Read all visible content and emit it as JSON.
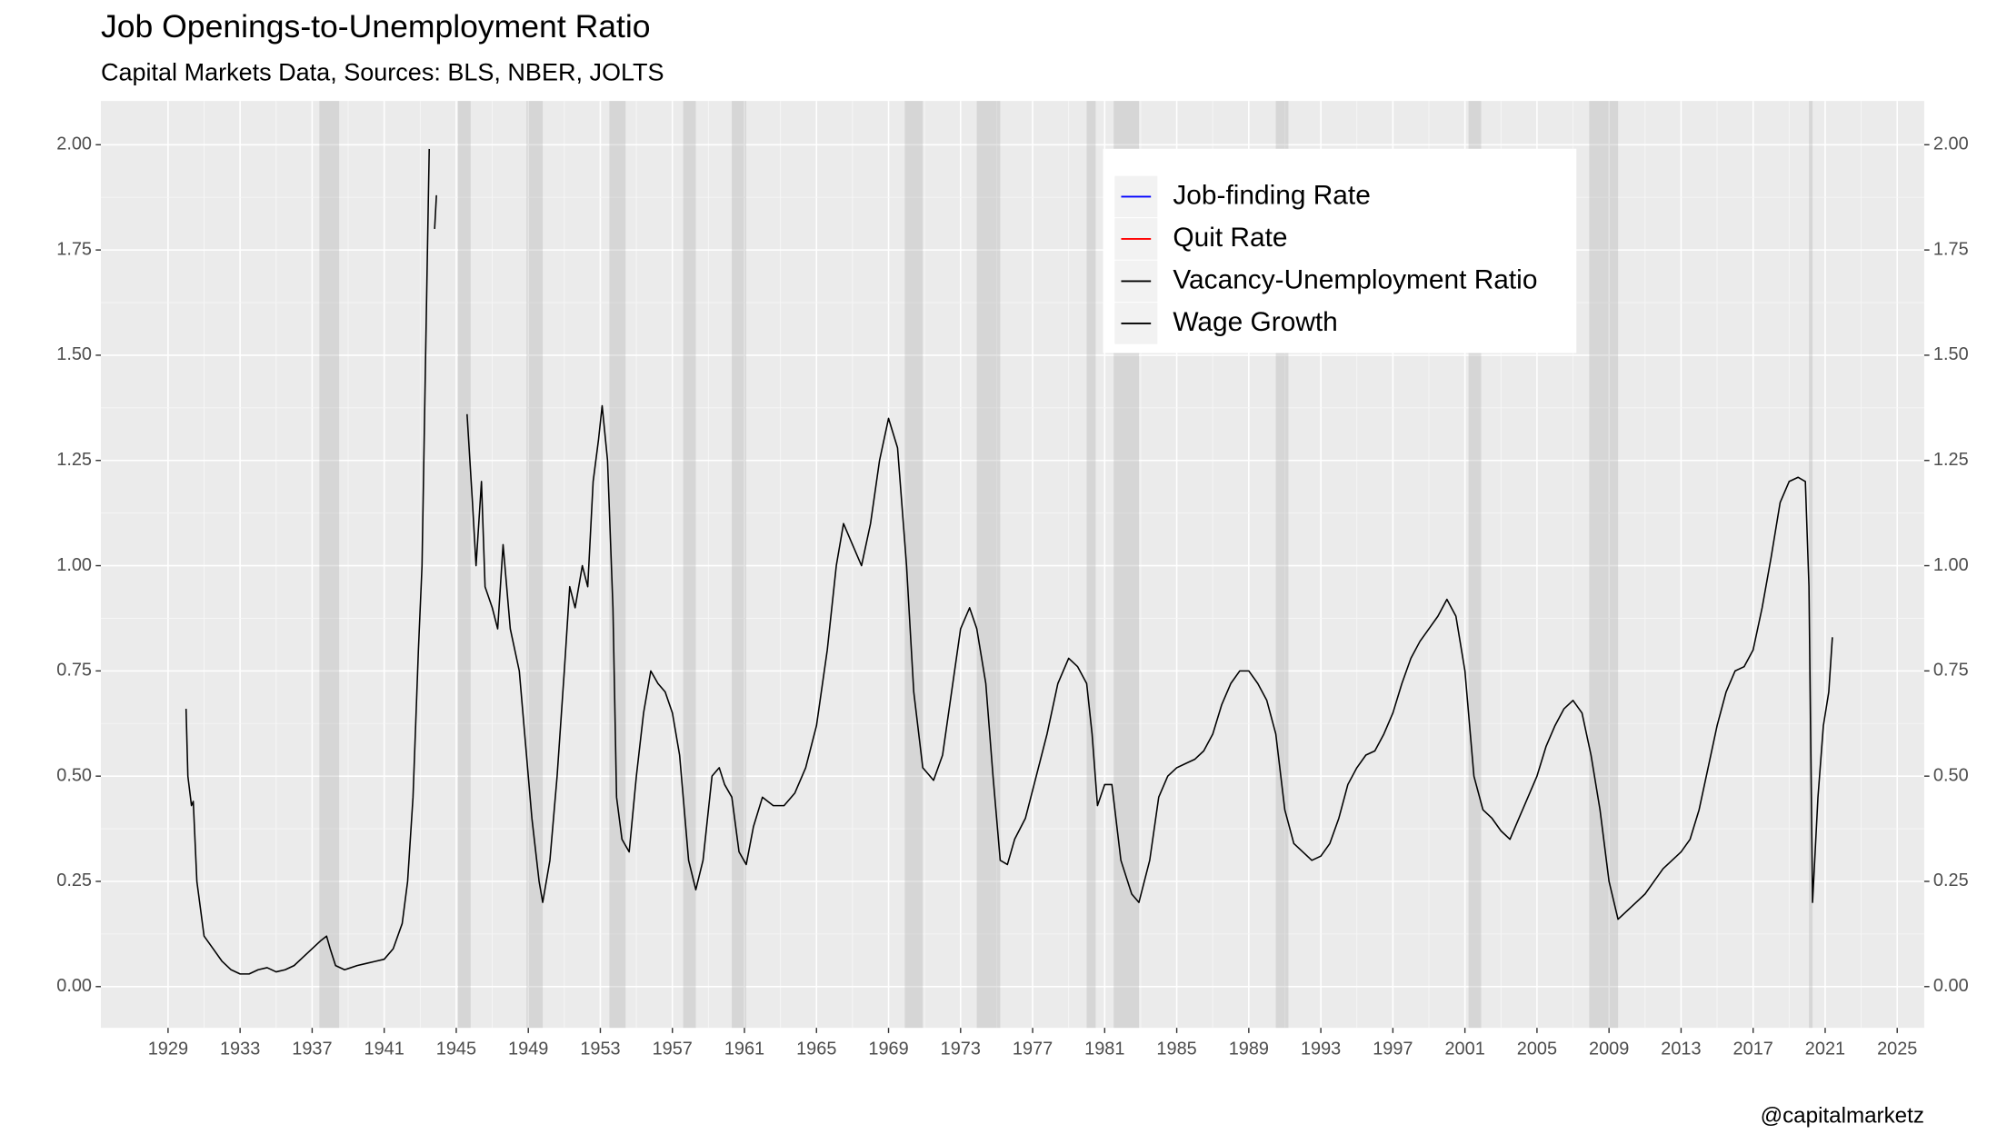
{
  "chart_data": {
    "type": "line",
    "title": "Job Openings-to-Unemployment Ratio",
    "subtitle": "Capital Markets Data, Sources: BLS, NBER, JOLTS",
    "caption": "@capitalmarketz",
    "xlim": [
      1925.27,
      2026.5
    ],
    "ylim": [
      -0.098,
      2.104
    ],
    "xticks": [
      1929,
      1933,
      1937,
      1941,
      1945,
      1949,
      1953,
      1957,
      1961,
      1965,
      1969,
      1973,
      1977,
      1981,
      1985,
      1989,
      1993,
      1997,
      2001,
      2005,
      2009,
      2013,
      2017,
      2021,
      2025
    ],
    "yticks": [
      {
        "value": 0,
        "label": "0.00"
      },
      {
        "value": 0.25,
        "label": "0.25"
      },
      {
        "value": 0.5,
        "label": "0.50"
      },
      {
        "value": 0.75,
        "label": "0.75"
      },
      {
        "value": 1,
        "label": "1.00"
      },
      {
        "value": 1.25,
        "label": "1.25"
      },
      {
        "value": 1.5,
        "label": "1.50"
      },
      {
        "value": 1.75,
        "label": "1.75"
      },
      {
        "value": 2,
        "label": "2.00"
      }
    ],
    "grid": true,
    "legend_position": "top-right",
    "legend": [
      {
        "name": "Job-finding Rate",
        "color": "#0000ff"
      },
      {
        "name": "Quit Rate",
        "color": "#ff0000"
      },
      {
        "name": "Vacancy-Unemployment Ratio",
        "color": "#000000"
      },
      {
        "name": "Wage Growth",
        "color": "#000000"
      }
    ],
    "recessions": [
      [
        1937.4,
        1938.5
      ],
      [
        1945.1,
        1945.8
      ],
      [
        1948.9,
        1949.8
      ],
      [
        1953.5,
        1954.4
      ],
      [
        1957.6,
        1958.3
      ],
      [
        1960.3,
        1961.1
      ],
      [
        1969.9,
        1970.9
      ],
      [
        1973.9,
        1975.2
      ],
      [
        1980.0,
        1980.5
      ],
      [
        1981.5,
        1982.9
      ],
      [
        1990.5,
        1991.2
      ],
      [
        2001.2,
        2001.9
      ],
      [
        2007.9,
        2009.5
      ],
      [
        2020.1,
        2020.3
      ]
    ],
    "series": [
      {
        "name": "Vacancy-Unemployment Ratio",
        "color": "#000000",
        "x": [
          1930.0,
          1930.1,
          1930.3,
          1930.4,
          1930.6,
          1931.0,
          1931.5,
          1932.0,
          1932.5,
          1933.0,
          1933.5,
          1934.0,
          1934.5,
          1935.0,
          1935.5,
          1936.0,
          1936.5,
          1937.0,
          1937.5,
          1937.8,
          1938.0,
          1938.3,
          1938.8,
          1939.5,
          1940.0,
          1940.5,
          1941.0,
          1941.5,
          1942.0,
          1942.3,
          1942.6,
          1942.9,
          1943.1,
          1943.3,
          1943.5,
          1943.65,
          1943.8,
          1943.9,
          1944.7,
          1945.6,
          1945.9,
          1946.1,
          1946.4,
          1946.6,
          1947.0,
          1947.3,
          1947.6,
          1948.0,
          1948.5,
          1948.9,
          1949.2,
          1949.6,
          1949.8,
          1950.2,
          1950.6,
          1951.0,
          1951.3,
          1951.6,
          1952.0,
          1952.3,
          1952.6,
          1952.9,
          1953.1,
          1953.4,
          1953.7,
          1953.9,
          1954.2,
          1954.6,
          1955.0,
          1955.4,
          1955.8,
          1956.2,
          1956.6,
          1957.0,
          1957.4,
          1957.9,
          1958.3,
          1958.7,
          1959.2,
          1959.6,
          1959.9,
          1960.3,
          1960.7,
          1961.1,
          1961.5,
          1962.0,
          1962.6,
          1963.2,
          1963.8,
          1964.4,
          1965.0,
          1965.6,
          1966.1,
          1966.5,
          1967.0,
          1967.5,
          1968.0,
          1968.5,
          1969.0,
          1969.5,
          1970.0,
          1970.4,
          1970.9,
          1971.5,
          1972.0,
          1972.5,
          1973.0,
          1973.5,
          1973.9,
          1974.4,
          1974.8,
          1975.2,
          1975.6,
          1976.0,
          1976.6,
          1977.2,
          1977.8,
          1978.4,
          1979.0,
          1979.5,
          1980.0,
          1980.3,
          1980.6,
          1981.0,
          1981.4,
          1981.9,
          1982.5,
          1982.9,
          1983.5,
          1984.0,
          1984.5,
          1985.0,
          1985.5,
          1986.0,
          1986.5,
          1987.0,
          1987.5,
          1988.0,
          1988.5,
          1989.0,
          1989.5,
          1990.0,
          1990.5,
          1991.0,
          1991.5,
          1992.0,
          1992.5,
          1993.0,
          1993.5,
          1994.0,
          1994.5,
          1995.0,
          1995.5,
          1996.0,
          1996.5,
          1997.0,
          1997.5,
          1998.0,
          1998.5,
          1999.0,
          1999.5,
          2000.0,
          2000.5,
          2001.0,
          2001.5,
          2002.0,
          2002.5,
          2003.0,
          2003.5,
          2004.0,
          2004.5,
          2005.0,
          2005.5,
          2006.0,
          2006.5,
          2007.0,
          2007.5,
          2008.0,
          2008.5,
          2009.0,
          2009.5,
          2010.0,
          2010.5,
          2011.0,
          2011.5,
          2012.0,
          2012.5,
          2013.0,
          2013.5,
          2014.0,
          2014.5,
          2015.0,
          2015.5,
          2016.0,
          2016.5,
          2017.0,
          2017.5,
          2018.0,
          2018.5,
          2019.0,
          2019.5,
          2019.9,
          2020.1,
          2020.3,
          2020.6,
          2020.9,
          2021.2,
          2021.4
        ],
        "values": [
          0.66,
          0.5,
          0.43,
          0.44,
          0.25,
          0.12,
          0.09,
          0.06,
          0.04,
          0.03,
          0.03,
          0.04,
          0.045,
          0.035,
          0.04,
          0.05,
          0.07,
          0.09,
          0.11,
          0.12,
          0.09,
          0.05,
          0.04,
          0.05,
          0.055,
          0.06,
          0.065,
          0.09,
          0.15,
          0.25,
          0.45,
          0.8,
          1.0,
          1.5,
          1.99,
          null,
          1.8,
          1.88,
          null,
          1.36,
          1.15,
          1.0,
          1.2,
          0.95,
          0.9,
          0.85,
          1.05,
          0.85,
          0.75,
          0.55,
          0.4,
          0.25,
          0.2,
          0.3,
          0.5,
          0.75,
          0.95,
          0.9,
          1.0,
          0.95,
          1.2,
          1.3,
          1.38,
          1.25,
          0.9,
          0.45,
          0.35,
          0.32,
          0.5,
          0.65,
          0.75,
          0.72,
          0.7,
          0.65,
          0.55,
          0.3,
          0.23,
          0.3,
          0.5,
          0.52,
          0.48,
          0.45,
          0.32,
          0.29,
          0.38,
          0.45,
          0.43,
          0.43,
          0.46,
          0.52,
          0.62,
          0.8,
          1.0,
          1.1,
          1.05,
          1.0,
          1.1,
          1.25,
          1.35,
          1.28,
          1.0,
          0.7,
          0.52,
          0.49,
          0.55,
          0.7,
          0.85,
          0.9,
          0.85,
          0.72,
          0.5,
          0.3,
          0.29,
          0.35,
          0.4,
          0.5,
          0.6,
          0.72,
          0.78,
          0.76,
          0.72,
          0.6,
          0.43,
          0.48,
          0.48,
          0.3,
          0.22,
          0.2,
          0.3,
          0.45,
          0.5,
          0.52,
          0.53,
          0.54,
          0.56,
          0.6,
          0.67,
          0.72,
          0.75,
          0.75,
          0.72,
          0.68,
          0.6,
          0.42,
          0.34,
          0.32,
          0.3,
          0.31,
          0.34,
          0.4,
          0.48,
          0.52,
          0.55,
          0.56,
          0.6,
          0.65,
          0.72,
          0.78,
          0.82,
          0.85,
          0.88,
          0.92,
          0.88,
          0.75,
          0.5,
          0.42,
          0.4,
          0.37,
          0.35,
          0.4,
          0.45,
          0.5,
          0.57,
          0.62,
          0.66,
          0.68,
          0.65,
          0.55,
          0.42,
          0.25,
          0.16,
          0.18,
          0.2,
          0.22,
          0.25,
          0.28,
          0.3,
          0.32,
          0.35,
          0.42,
          0.52,
          0.62,
          0.7,
          0.75,
          0.76,
          0.8,
          0.9,
          1.02,
          1.15,
          1.2,
          1.21,
          1.2,
          0.95,
          0.2,
          0.45,
          0.62,
          0.7,
          0.83
        ]
      }
    ]
  }
}
